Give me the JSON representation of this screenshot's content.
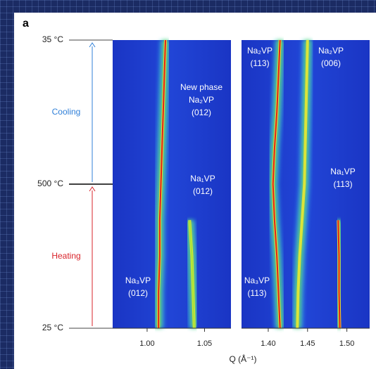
{
  "chart_data": {
    "type": "heatmap",
    "panel_label": "a",
    "y_categories": [
      "25 °C",
      "500 °C",
      "35 °C"
    ],
    "arrows": [
      {
        "label": "Heating",
        "color": "#d8232a"
      },
      {
        "label": "Cooling",
        "color": "#2f7fd8"
      }
    ],
    "x_label": "Q (Å⁻¹)",
    "panels": [
      {
        "xlim": [
          0.97,
          1.073
        ],
        "xticks": [
          {
            "value": 1.0,
            "label": "1.00"
          },
          1.05
        ],
        "peaks": [
          {
            "color": "#e0201a",
            "values": [
              1.01,
              1.01,
              1.011,
              1.011,
              1.012,
              1.013,
              1.014,
              1.015,
              1.016
            ]
          },
          {
            "color": "#9ee83a",
            "values": [
              1.041,
              1.04,
              1.039,
              1.037,
              null,
              null,
              null,
              null,
              null
            ]
          }
        ],
        "annotations": [
          [
            "New phase",
            "Na₂VP",
            "(012)"
          ],
          [
            "Na₁VP",
            "(012)"
          ],
          [
            "Na₃VP",
            "(012)"
          ]
        ]
      },
      {
        "xlim": [
          1.366,
          1.529
        ],
        "xticks": [
          {
            "value": 1.4,
            "label": "1.40"
          },
          1.45,
          {
            "value": 1.5,
            "label": "1.50"
          }
        ],
        "peaks": [
          {
            "color": "#e0201a",
            "values": [
              1.415,
              1.413,
              1.411,
              1.408,
              1.406,
              1.408,
              1.411,
              1.413,
              1.415
            ]
          },
          {
            "color": "#d8e83a",
            "values": [
              1.437,
              1.438,
              1.44,
              1.443,
              1.446,
              1.447,
              1.448,
              1.449,
              1.45
            ]
          },
          {
            "color": "#e0201a",
            "values": [
              1.491,
              1.49,
              1.49,
              1.489,
              null,
              null,
              null,
              null,
              null
            ]
          }
        ],
        "annotations": [
          [
            "Na₂VP",
            "(113)"
          ],
          [
            "Na₂VP",
            "(006)"
          ],
          [
            "Na₁VP",
            "(113)"
          ],
          [
            "Na₃VP",
            "(113)"
          ]
        ]
      }
    ]
  }
}
